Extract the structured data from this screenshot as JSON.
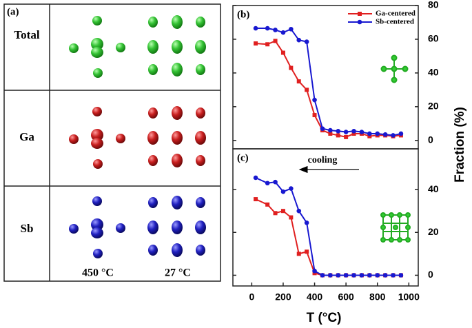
{
  "panel_a": {
    "label": "(a)",
    "rows": [
      "Total",
      "Ga",
      "Sb"
    ],
    "columns": [
      "450 °C",
      "27 °C"
    ]
  },
  "shared": {
    "ylabel": "Fraction (%)",
    "xlabel": "T (°C)"
  },
  "chart_data": [
    {
      "type": "line",
      "title": "(b)",
      "x": [
        25,
        100,
        150,
        200,
        250,
        300,
        350,
        400,
        450,
        500,
        550,
        600,
        650,
        700,
        750,
        800,
        850,
        900,
        950
      ],
      "series": [
        {
          "name": "Ga-centered",
          "color": "#e02020",
          "marker": "square",
          "values": [
            57.5,
            57,
            59,
            52,
            43,
            35,
            30,
            15,
            6,
            4,
            3,
            2,
            4,
            4,
            2.5,
            3,
            3,
            2.5,
            3
          ]
        },
        {
          "name": "Sb-centered",
          "color": "#1818d0",
          "marker": "circle",
          "values": [
            66.5,
            66.5,
            65.5,
            64,
            66,
            59.5,
            58.5,
            24,
            7,
            6,
            5.5,
            5,
            5.5,
            5,
            4,
            4,
            3.5,
            3,
            4
          ]
        }
      ],
      "xlim": [
        -120,
        1060
      ],
      "ylim": [
        -5,
        80
      ],
      "yticks": [
        0,
        20,
        40,
        60,
        80
      ],
      "legend": "upper right"
    },
    {
      "type": "line",
      "title": "(c)",
      "annotation": "cooling",
      "x": [
        25,
        100,
        150,
        200,
        250,
        300,
        350,
        400,
        450,
        500,
        550,
        600,
        650,
        700,
        750,
        800,
        850,
        900,
        950
      ],
      "series": [
        {
          "name": "Ga-centered",
          "color": "#e02020",
          "marker": "square",
          "values": [
            35.5,
            33,
            29,
            30,
            27,
            10,
            11,
            1,
            0,
            0,
            0,
            0,
            0,
            0,
            0,
            0,
            0,
            0,
            0
          ]
        },
        {
          "name": "Sb-centered",
          "color": "#1818d0",
          "marker": "circle",
          "values": [
            45.5,
            43,
            43.5,
            39,
            40.5,
            30,
            24.5,
            2,
            0,
            0,
            0,
            0,
            0,
            0,
            0,
            0,
            0,
            0,
            0
          ]
        }
      ],
      "xlim": [
        -120,
        1060
      ],
      "ylim": [
        -5,
        59
      ],
      "xticks": [
        0,
        200,
        400,
        600,
        800,
        1000
      ],
      "yticks": [
        0,
        20,
        40
      ]
    }
  ]
}
